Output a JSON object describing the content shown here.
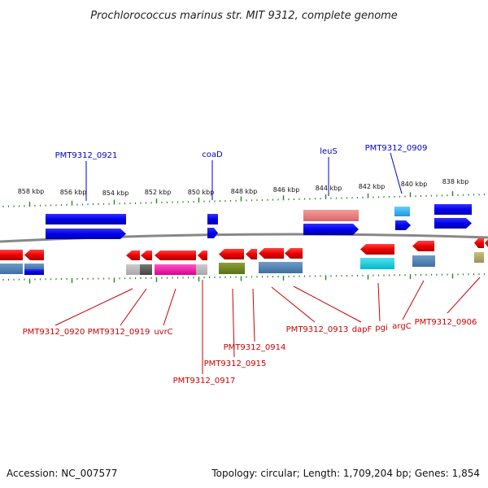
{
  "title": "Prochlorococcus marinus str. MIT 9312, complete genome",
  "footer": {
    "accession": "Accession: NC_007577",
    "stats": "Topology: circular; Length: 1,709,204 bp; Genes: 1,854"
  },
  "colors": {
    "forward_gene": "#0000ee",
    "reverse_gene": "#ee0000",
    "forward_label": "#0000cc",
    "reverse_label": "#cc0000",
    "backbone": "#888888",
    "ticks": "#228822"
  },
  "scale_labels": [
    "858 kbp",
    "856 kbp",
    "854 kbp",
    "852 kbp",
    "850 kbp",
    "848 kbp",
    "846 kbp",
    "844 kbp",
    "842 kbp",
    "840 kbp",
    "838 kbp"
  ],
  "top_labels": [
    "PMT9312_0921",
    "coaD",
    "leuS",
    "PMT9312_0909"
  ],
  "bottom_labels": [
    "PMT9312_0920",
    "PMT9312_0919",
    "uvrC",
    "PMT9312_0917",
    "PMT9312_0915",
    "PMT9312_0914",
    "PMT9312_0913",
    "dapF",
    "pgi",
    "argC",
    "PMT9312_0906"
  ]
}
